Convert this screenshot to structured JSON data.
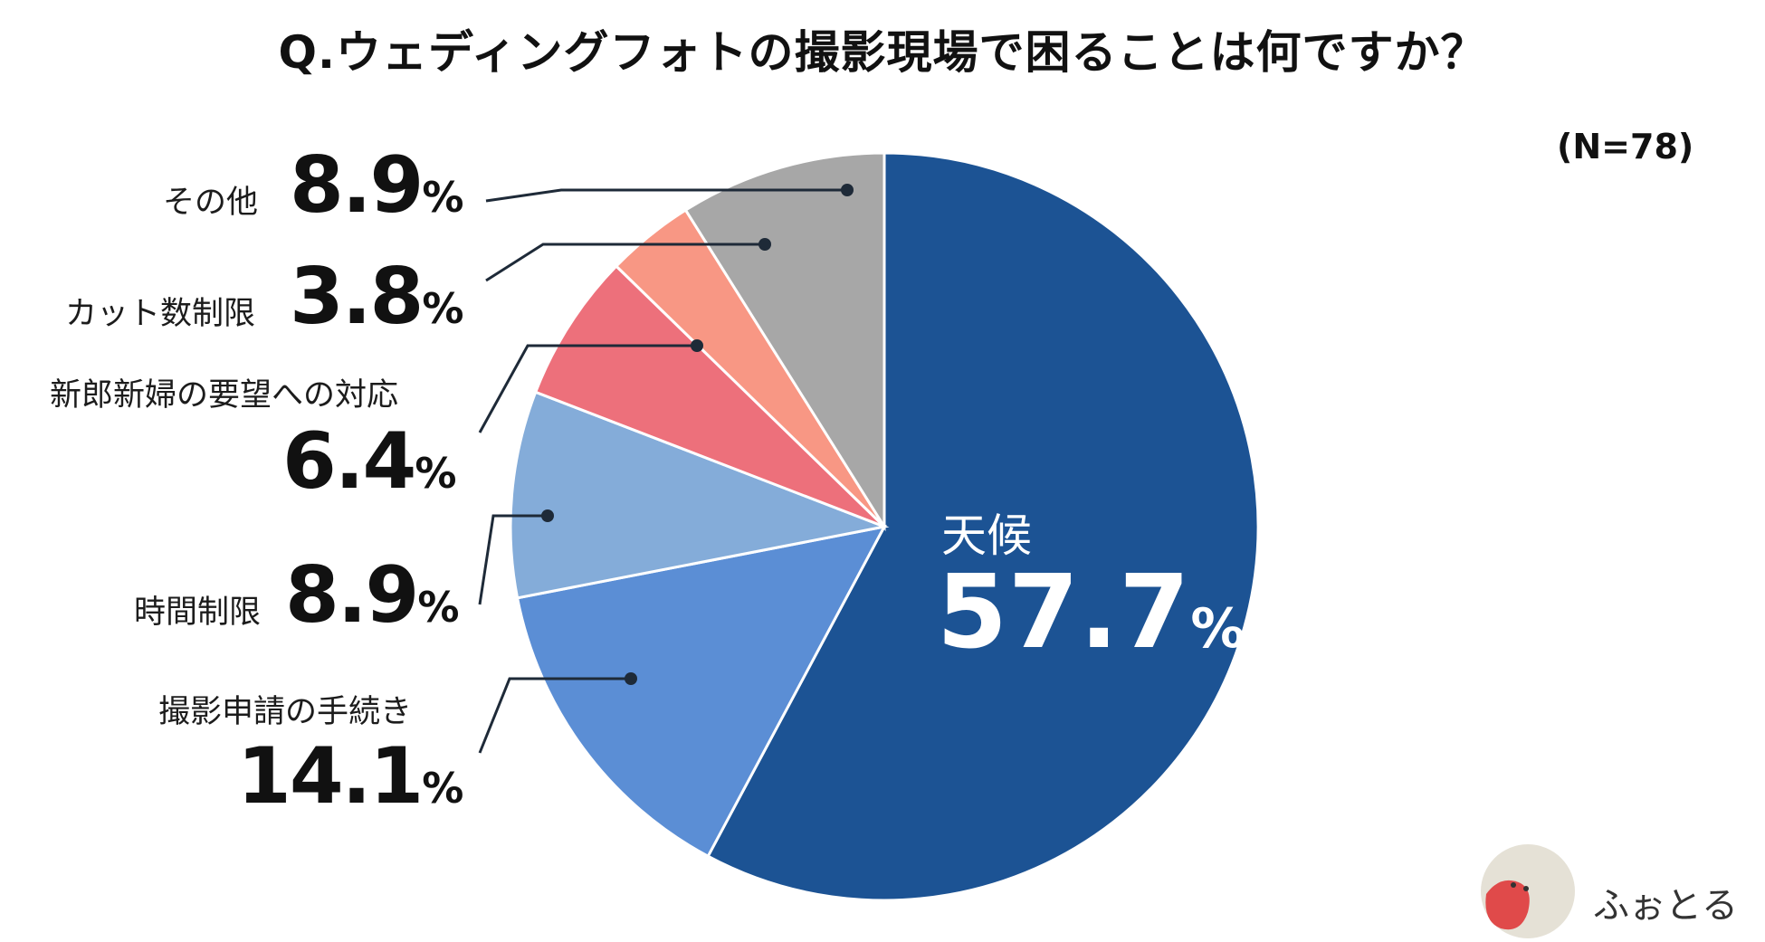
{
  "title": "Q.ウェディングフォトの撮影現場で困ることは何ですか？",
  "sample_size": "(N=78)",
  "chart_data": {
    "type": "pie",
    "title": "Q.ウェディングフォトの撮影現場で困ることは何ですか？",
    "unit": "%",
    "slices": [
      {
        "label": "天候",
        "value": 57.7,
        "color": "#1c5394"
      },
      {
        "label": "撮影申請の手続き",
        "value": 14.1,
        "color": "#5b8ed5"
      },
      {
        "label": "時間制限",
        "value": 8.9,
        "color": "#84acd9"
      },
      {
        "label": "新郎新婦の要望への対応",
        "value": 6.4,
        "color": "#ed707b"
      },
      {
        "label": "カット数制限",
        "value": 3.8,
        "color": "#f89784"
      },
      {
        "label": "その他",
        "value": 8.9,
        "color": "#a7a7a7"
      }
    ]
  },
  "labels": {
    "weather_name": "天候",
    "weather_value": "57.7",
    "permit_name": "撮影申請の手続き",
    "permit_value": "14.1",
    "time_name": "時間制限",
    "time_value": "8.9",
    "request_name": "新郎新婦の要望への対応",
    "request_value": "6.4",
    "cut_name": "カット数制限",
    "cut_value": "3.8",
    "other_name": "その他",
    "other_value": "8.9",
    "percent": "%"
  },
  "logo": {
    "text": "ふぉとる",
    "colors": {
      "circle": "#e5e1d6",
      "figure": "#e04a4a"
    }
  }
}
